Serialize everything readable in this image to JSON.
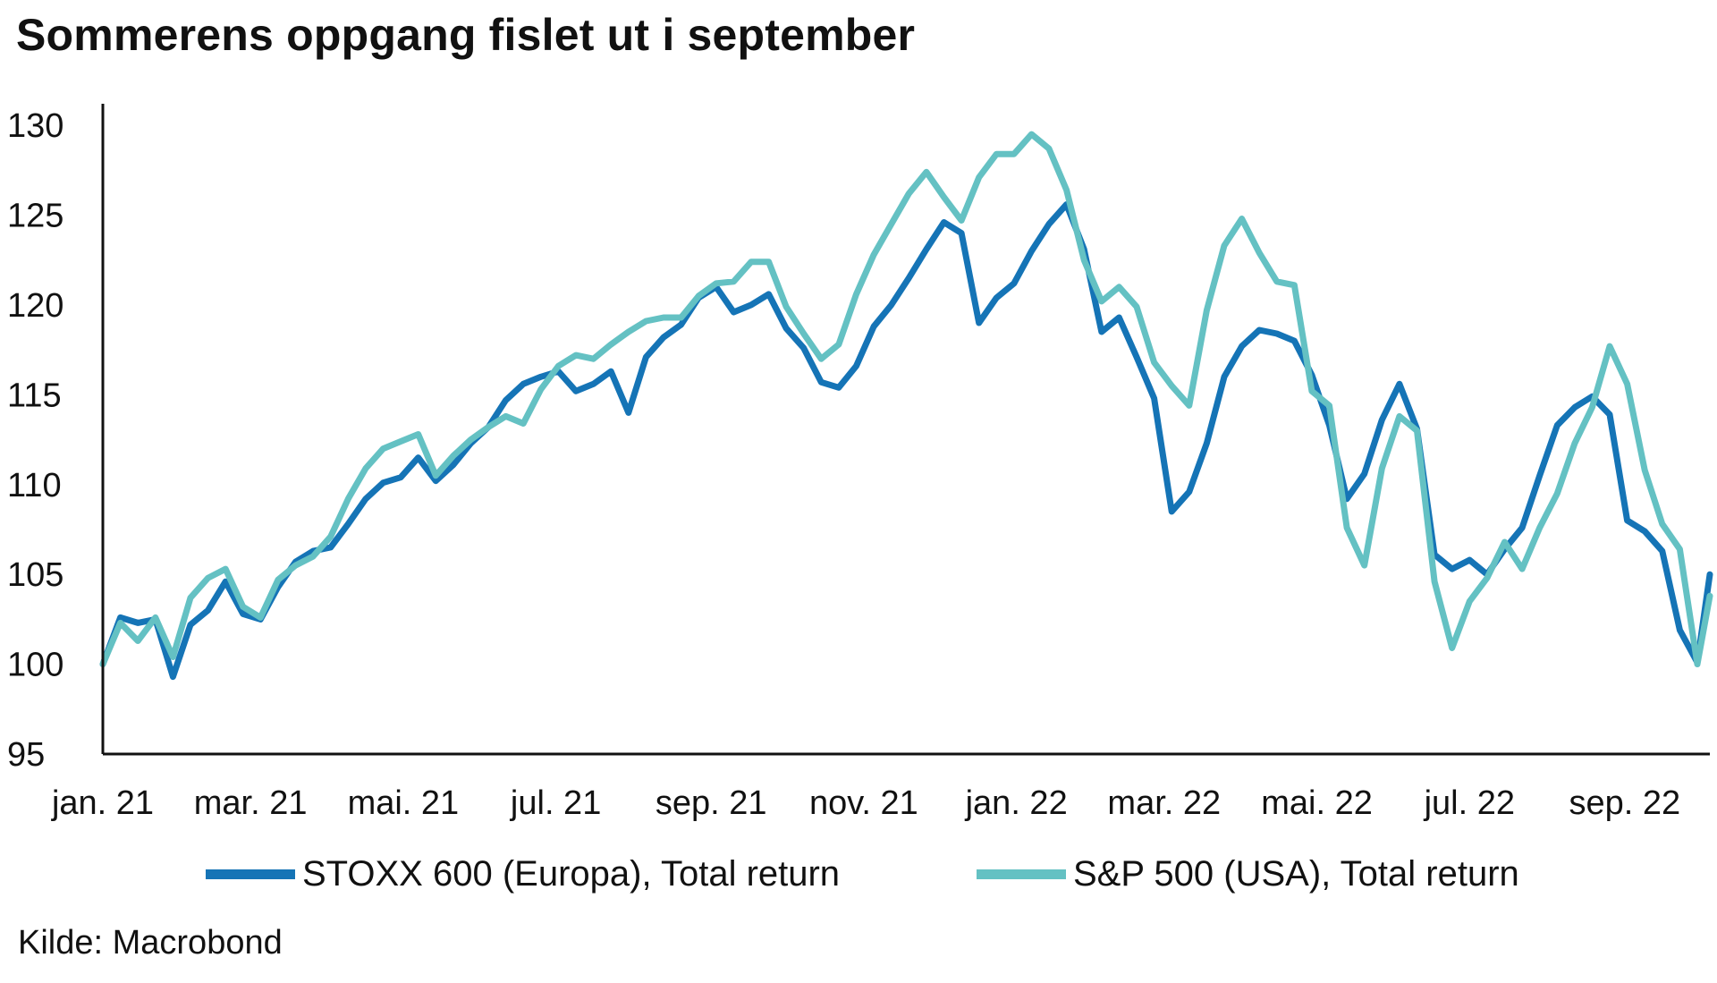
{
  "title": "Sommerens oppgang fislet ut i september",
  "source": "Kilde: Macrobond",
  "colors": {
    "stoxx": "#1574b6",
    "sp": "#64c1c3",
    "axis": "#111111"
  },
  "chart_data": {
    "type": "line",
    "title": "Sommerens oppgang fislet ut i september",
    "xlabel": "",
    "ylabel": "",
    "ylim": [
      95,
      131
    ],
    "yticks": [
      95,
      100,
      105,
      110,
      115,
      120,
      125,
      130
    ],
    "xticks": [
      "jan. 21",
      "mar. 21",
      "mai. 21",
      "jul. 21",
      "sep. 21",
      "nov. 21",
      "jan. 22",
      "mar. 22",
      "mai. 22",
      "jul. 22",
      "sep. 22"
    ],
    "xlim": [
      "2021-01-01",
      "2022-10-05"
    ],
    "grid": false,
    "legend": "bottom",
    "series": [
      {
        "name": "STOXX 600 (Europa), Total return",
        "color": "#1574b6",
        "points": [
          [
            "2021-01-01",
            100.0
          ],
          [
            "2021-01-08",
            102.6
          ],
          [
            "2021-01-15",
            102.3
          ],
          [
            "2021-01-22",
            102.5
          ],
          [
            "2021-01-29",
            99.3
          ],
          [
            "2021-02-05",
            102.2
          ],
          [
            "2021-02-12",
            103.0
          ],
          [
            "2021-02-19",
            104.6
          ],
          [
            "2021-02-26",
            102.8
          ],
          [
            "2021-03-05",
            102.5
          ],
          [
            "2021-03-12",
            104.3
          ],
          [
            "2021-03-19",
            105.7
          ],
          [
            "2021-03-26",
            106.3
          ],
          [
            "2021-04-02",
            106.5
          ],
          [
            "2021-04-09",
            107.8
          ],
          [
            "2021-04-16",
            109.2
          ],
          [
            "2021-04-23",
            110.1
          ],
          [
            "2021-04-30",
            110.4
          ],
          [
            "2021-05-07",
            111.5
          ],
          [
            "2021-05-14",
            110.2
          ],
          [
            "2021-05-21",
            111.1
          ],
          [
            "2021-05-28",
            112.3
          ],
          [
            "2021-06-04",
            113.2
          ],
          [
            "2021-06-11",
            114.7
          ],
          [
            "2021-06-18",
            115.6
          ],
          [
            "2021-06-25",
            116.0
          ],
          [
            "2021-07-02",
            116.3
          ],
          [
            "2021-07-09",
            115.2
          ],
          [
            "2021-07-16",
            115.6
          ],
          [
            "2021-07-23",
            116.3
          ],
          [
            "2021-07-30",
            114.0
          ],
          [
            "2021-08-06",
            117.1
          ],
          [
            "2021-08-13",
            118.2
          ],
          [
            "2021-08-20",
            118.9
          ],
          [
            "2021-08-27",
            120.4
          ],
          [
            "2021-09-03",
            121.0
          ],
          [
            "2021-09-10",
            119.6
          ],
          [
            "2021-09-17",
            120.0
          ],
          [
            "2021-09-24",
            120.6
          ],
          [
            "2021-10-01",
            118.7
          ],
          [
            "2021-10-08",
            117.6
          ],
          [
            "2021-10-15",
            115.7
          ],
          [
            "2021-10-22",
            115.4
          ],
          [
            "2021-10-29",
            116.6
          ],
          [
            "2021-11-05",
            118.8
          ],
          [
            "2021-11-12",
            120.0
          ],
          [
            "2021-11-19",
            121.5
          ],
          [
            "2021-11-26",
            123.1
          ],
          [
            "2021-12-03",
            124.6
          ],
          [
            "2021-12-10",
            124.0
          ],
          [
            "2021-12-17",
            119.0
          ],
          [
            "2021-12-24",
            120.4
          ],
          [
            "2021-12-31",
            121.2
          ],
          [
            "2022-01-07",
            123.0
          ],
          [
            "2022-01-14",
            124.5
          ],
          [
            "2022-01-21",
            125.6
          ],
          [
            "2022-01-28",
            123.1
          ],
          [
            "2022-02-04",
            118.5
          ],
          [
            "2022-02-11",
            119.3
          ],
          [
            "2022-02-18",
            117.1
          ],
          [
            "2022-02-25",
            114.8
          ],
          [
            "2022-03-04",
            108.5
          ],
          [
            "2022-03-11",
            109.6
          ],
          [
            "2022-03-18",
            112.3
          ],
          [
            "2022-03-25",
            116.0
          ],
          [
            "2022-04-01",
            117.7
          ],
          [
            "2022-04-08",
            118.6
          ],
          [
            "2022-04-15",
            118.4
          ],
          [
            "2022-04-22",
            118.0
          ],
          [
            "2022-04-29",
            116.1
          ],
          [
            "2022-05-06",
            113.3
          ],
          [
            "2022-05-13",
            109.2
          ],
          [
            "2022-05-20",
            110.6
          ],
          [
            "2022-05-27",
            113.6
          ],
          [
            "2022-06-03",
            115.6
          ],
          [
            "2022-06-10",
            113.1
          ],
          [
            "2022-06-17",
            106.1
          ],
          [
            "2022-06-24",
            105.3
          ],
          [
            "2022-07-01",
            105.8
          ],
          [
            "2022-07-08",
            105.0
          ],
          [
            "2022-07-15",
            106.4
          ],
          [
            "2022-07-22",
            107.6
          ],
          [
            "2022-07-29",
            110.5
          ],
          [
            "2022-08-05",
            113.3
          ],
          [
            "2022-08-12",
            114.3
          ],
          [
            "2022-08-19",
            114.9
          ],
          [
            "2022-08-26",
            113.9
          ],
          [
            "2022-09-02",
            108.0
          ],
          [
            "2022-09-09",
            107.4
          ],
          [
            "2022-09-16",
            106.3
          ],
          [
            "2022-09-23",
            101.9
          ],
          [
            "2022-09-30",
            100.1
          ],
          [
            "2022-10-05",
            105.0
          ]
        ]
      },
      {
        "name": "S&P 500 (USA), Total return",
        "color": "#64c1c3",
        "points": [
          [
            "2021-01-01",
            100.0
          ],
          [
            "2021-01-08",
            102.3
          ],
          [
            "2021-01-15",
            101.3
          ],
          [
            "2021-01-22",
            102.6
          ],
          [
            "2021-01-29",
            100.4
          ],
          [
            "2021-02-05",
            103.7
          ],
          [
            "2021-02-12",
            104.8
          ],
          [
            "2021-02-19",
            105.3
          ],
          [
            "2021-02-26",
            103.2
          ],
          [
            "2021-03-05",
            102.6
          ],
          [
            "2021-03-12",
            104.7
          ],
          [
            "2021-03-19",
            105.5
          ],
          [
            "2021-03-26",
            106.0
          ],
          [
            "2021-04-02",
            107.1
          ],
          [
            "2021-04-09",
            109.2
          ],
          [
            "2021-04-16",
            110.9
          ],
          [
            "2021-04-23",
            112.0
          ],
          [
            "2021-04-30",
            112.4
          ],
          [
            "2021-05-07",
            112.8
          ],
          [
            "2021-05-14",
            110.5
          ],
          [
            "2021-05-21",
            111.6
          ],
          [
            "2021-05-28",
            112.5
          ],
          [
            "2021-06-04",
            113.2
          ],
          [
            "2021-06-11",
            113.8
          ],
          [
            "2021-06-18",
            113.4
          ],
          [
            "2021-06-25",
            115.3
          ],
          [
            "2021-07-02",
            116.6
          ],
          [
            "2021-07-09",
            117.2
          ],
          [
            "2021-07-16",
            117.0
          ],
          [
            "2021-07-23",
            117.8
          ],
          [
            "2021-07-30",
            118.5
          ],
          [
            "2021-08-06",
            119.1
          ],
          [
            "2021-08-13",
            119.3
          ],
          [
            "2021-08-20",
            119.3
          ],
          [
            "2021-08-27",
            120.5
          ],
          [
            "2021-09-03",
            121.2
          ],
          [
            "2021-09-10",
            121.3
          ],
          [
            "2021-09-17",
            122.4
          ],
          [
            "2021-09-24",
            122.4
          ],
          [
            "2021-10-01",
            119.9
          ],
          [
            "2021-10-08",
            118.4
          ],
          [
            "2021-10-15",
            117.0
          ],
          [
            "2021-10-22",
            117.8
          ],
          [
            "2021-10-29",
            120.6
          ],
          [
            "2021-11-05",
            122.8
          ],
          [
            "2021-11-12",
            124.5
          ],
          [
            "2021-11-19",
            126.2
          ],
          [
            "2021-11-26",
            127.4
          ],
          [
            "2021-12-03",
            126.0
          ],
          [
            "2021-12-10",
            124.7
          ],
          [
            "2021-12-17",
            127.1
          ],
          [
            "2021-12-24",
            128.4
          ],
          [
            "2021-12-31",
            128.4
          ],
          [
            "2022-01-07",
            129.5
          ],
          [
            "2022-01-14",
            128.7
          ],
          [
            "2022-01-21",
            126.4
          ],
          [
            "2022-01-28",
            122.5
          ],
          [
            "2022-02-04",
            120.2
          ],
          [
            "2022-02-11",
            121.0
          ],
          [
            "2022-02-18",
            119.9
          ],
          [
            "2022-02-25",
            116.8
          ],
          [
            "2022-03-04",
            115.5
          ],
          [
            "2022-03-11",
            114.4
          ],
          [
            "2022-03-18",
            119.7
          ],
          [
            "2022-03-25",
            123.3
          ],
          [
            "2022-04-01",
            124.8
          ],
          [
            "2022-04-08",
            122.9
          ],
          [
            "2022-04-15",
            121.3
          ],
          [
            "2022-04-22",
            121.1
          ],
          [
            "2022-04-29",
            115.2
          ],
          [
            "2022-05-06",
            114.4
          ],
          [
            "2022-05-13",
            107.6
          ],
          [
            "2022-05-20",
            105.5
          ],
          [
            "2022-05-27",
            110.9
          ],
          [
            "2022-06-03",
            113.8
          ],
          [
            "2022-06-10",
            113.0
          ],
          [
            "2022-06-17",
            104.6
          ],
          [
            "2022-06-24",
            100.9
          ],
          [
            "2022-07-01",
            103.5
          ],
          [
            "2022-07-08",
            104.8
          ],
          [
            "2022-07-15",
            106.8
          ],
          [
            "2022-07-22",
            105.3
          ],
          [
            "2022-07-29",
            107.6
          ],
          [
            "2022-08-05",
            109.5
          ],
          [
            "2022-08-12",
            112.3
          ],
          [
            "2022-08-19",
            114.3
          ],
          [
            "2022-08-26",
            117.7
          ],
          [
            "2022-09-02",
            115.6
          ],
          [
            "2022-09-09",
            110.8
          ],
          [
            "2022-09-16",
            107.8
          ],
          [
            "2022-09-23",
            106.4
          ],
          [
            "2022-09-30",
            100.0
          ],
          [
            "2022-10-05",
            103.8
          ]
        ]
      }
    ]
  }
}
